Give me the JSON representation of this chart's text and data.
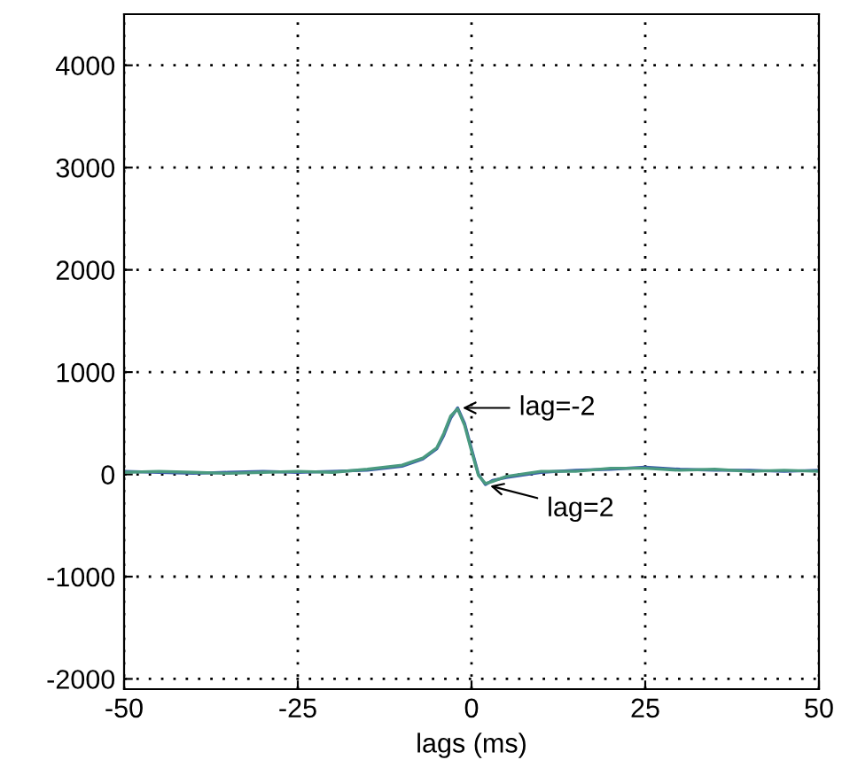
{
  "chart_data": {
    "type": "line",
    "xlabel": "lags (ms)",
    "xlim": [
      -50,
      50
    ],
    "xticks": [
      -50,
      -25,
      0,
      25,
      50
    ],
    "ylim": [
      -2100,
      4500
    ],
    "yticks": [
      -2000,
      -1000,
      0,
      1000,
      2000,
      3000,
      4000
    ],
    "grid": true,
    "marker": "none",
    "line_style": "solid",
    "series": [
      {
        "color": "#3a5ca8",
        "x": [
          -50,
          -45,
          -40,
          -35,
          -30,
          -25,
          -20,
          -15,
          -10,
          -7,
          -5,
          -4,
          -3,
          -2,
          -1,
          0,
          1,
          2,
          3,
          5,
          8,
          10,
          15,
          20,
          25,
          30,
          35,
          40,
          45,
          50
        ],
        "values": [
          30,
          20,
          10,
          20,
          30,
          20,
          30,
          40,
          80,
          150,
          250,
          380,
          550,
          650,
          500,
          250,
          0,
          -100,
          -60,
          -30,
          0,
          20,
          40,
          50,
          70,
          50,
          40,
          40,
          30,
          40
        ]
      },
      {
        "color": "#4a9a80",
        "x": [
          -50,
          -45,
          -40,
          -35,
          -30,
          -25,
          -20,
          -15,
          -10,
          -7,
          -5,
          -4,
          -3,
          -2,
          -1,
          0,
          1,
          2,
          3,
          5,
          8,
          10,
          15,
          20,
          25,
          30,
          35,
          40,
          45,
          50
        ],
        "values": [
          20,
          30,
          20,
          10,
          20,
          30,
          20,
          50,
          90,
          160,
          260,
          400,
          570,
          640,
          480,
          230,
          -10,
          -90,
          -70,
          -20,
          10,
          30,
          30,
          60,
          60,
          40,
          50,
          30,
          40,
          30
        ]
      }
    ],
    "annotations": [
      {
        "text": "lag=-2",
        "x": -2,
        "y": 650
      },
      {
        "text": "lag=2",
        "x": 2,
        "y": -100
      }
    ]
  }
}
